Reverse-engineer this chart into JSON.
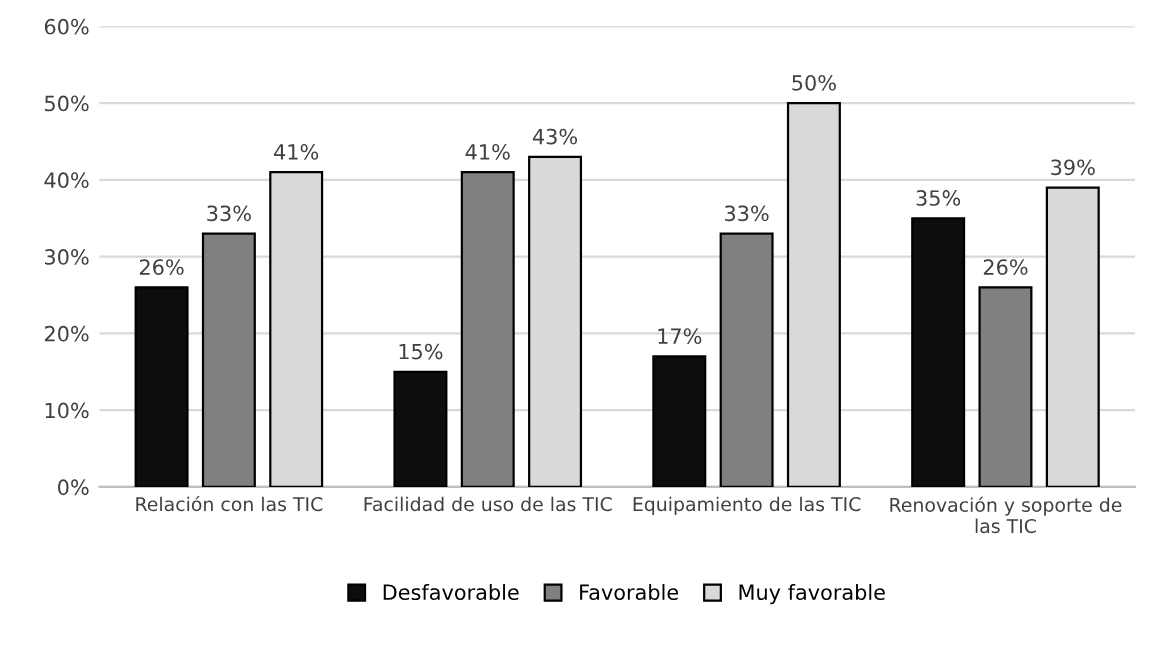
{
  "chart_data": {
    "type": "bar",
    "categories": [
      "Relación con las TIC",
      "Facilidad de uso de las TIC",
      "Equipamiento de las TIC",
      "Renovación y soporte de\nlas TIC"
    ],
    "series": [
      {
        "name": "Desfavorable",
        "color": "#0d0d0d",
        "values": [
          26,
          15,
          17,
          35
        ],
        "value_labels": [
          "26%",
          "15%",
          "17%",
          "35%"
        ]
      },
      {
        "name": "Favorable",
        "color": "#808080",
        "values": [
          33,
          41,
          33,
          26
        ],
        "value_labels": [
          "33%",
          "41%",
          "33%",
          "26%"
        ]
      },
      {
        "name": "Muy favorable",
        "color": "#d9d9d9",
        "values": [
          41,
          43,
          50,
          39
        ],
        "value_labels": [
          "41%",
          "43%",
          "50%",
          "39%"
        ]
      }
    ],
    "ylim": [
      0,
      60
    ],
    "yticks": [
      {
        "value": 0,
        "label": "0%"
      },
      {
        "value": 10,
        "label": "10%"
      },
      {
        "value": 20,
        "label": "20%"
      },
      {
        "value": 30,
        "label": "30%"
      },
      {
        "value": 40,
        "label": "40%"
      },
      {
        "value": 50,
        "label": "50%"
      },
      {
        "value": 60,
        "label": "60%"
      }
    ],
    "grid": "y",
    "legend": "bottom"
  }
}
